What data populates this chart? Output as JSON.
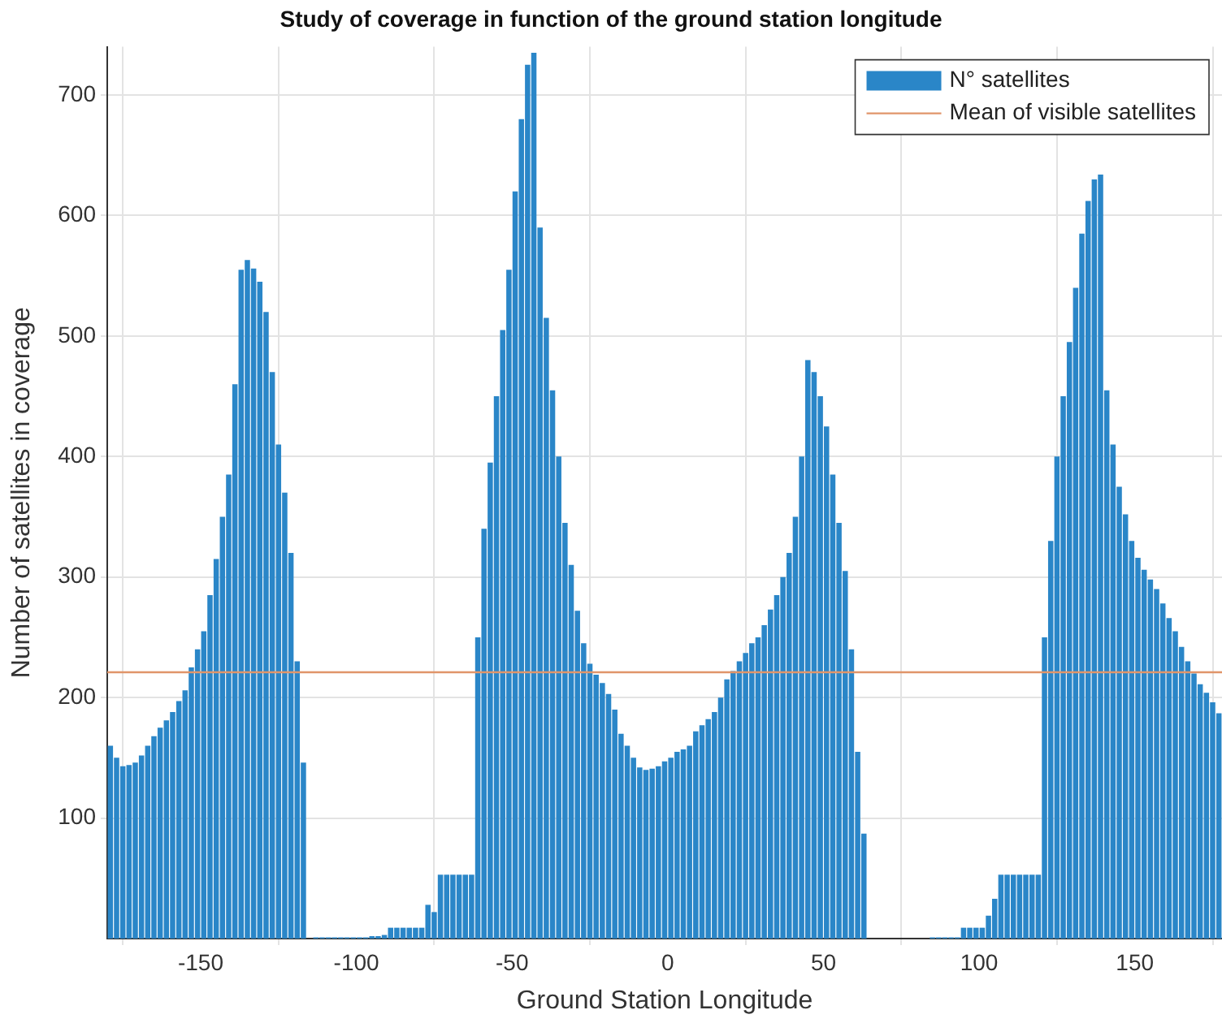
{
  "chart_data": {
    "type": "bar",
    "title": "Study of coverage in function of the ground station longitude",
    "xlabel": "Ground Station Longitude",
    "ylabel": "Number of satellites in coverage",
    "x": [
      -179,
      -177,
      -175,
      -173,
      -171,
      -169,
      -167,
      -165,
      -163,
      -161,
      -159,
      -157,
      -155,
      -153,
      -151,
      -149,
      -147,
      -145,
      -143,
      -141,
      -139,
      -137,
      -135,
      -133,
      -131,
      -129,
      -127,
      -125,
      -123,
      -121,
      -119,
      -117,
      -115,
      -113,
      -111,
      -109,
      -107,
      -105,
      -103,
      -101,
      -99,
      -97,
      -95,
      -93,
      -91,
      -89,
      -87,
      -85,
      -83,
      -81,
      -79,
      -77,
      -75,
      -73,
      -71,
      -69,
      -67,
      -65,
      -63,
      -61,
      -59,
      -57,
      -55,
      -53,
      -51,
      -49,
      -47,
      -45,
      -43,
      -41,
      -39,
      -37,
      -35,
      -33,
      -31,
      -29,
      -27,
      -25,
      -23,
      -21,
      -19,
      -17,
      -15,
      -13,
      -11,
      -9,
      -7,
      -5,
      -3,
      -1,
      1,
      3,
      5,
      7,
      9,
      11,
      13,
      15,
      17,
      19,
      21,
      23,
      25,
      27,
      29,
      31,
      33,
      35,
      37,
      39,
      41,
      43,
      45,
      47,
      49,
      51,
      53,
      55,
      57,
      59,
      61,
      63,
      65,
      67,
      69,
      71,
      73,
      75,
      77,
      79,
      81,
      83,
      85,
      87,
      89,
      91,
      93,
      95,
      97,
      99,
      101,
      103,
      105,
      107,
      109,
      111,
      113,
      115,
      117,
      119,
      121,
      123,
      125,
      127,
      129,
      131,
      133,
      135,
      137,
      139,
      141,
      143,
      145,
      147,
      149,
      151,
      153,
      155,
      157,
      159,
      161,
      163,
      165,
      167,
      169,
      171,
      173,
      175,
      177
    ],
    "series": [
      {
        "name": "N° satellites",
        "color": "#2a86c8",
        "values": [
          160,
          150,
          143,
          144,
          146,
          152,
          160,
          168,
          175,
          181,
          188,
          197,
          206,
          225,
          240,
          255,
          285,
          315,
          350,
          385,
          460,
          555,
          563,
          556,
          545,
          520,
          470,
          410,
          370,
          320,
          230,
          146,
          0,
          1,
          1,
          1,
          1,
          1,
          1,
          1,
          1,
          1,
          2,
          2,
          3,
          9,
          9,
          9,
          9,
          9,
          9,
          28,
          22,
          53,
          53,
          53,
          53,
          53,
          53,
          250,
          340,
          395,
          450,
          505,
          555,
          620,
          680,
          725,
          735,
          590,
          515,
          455,
          400,
          345,
          310,
          272,
          245,
          228,
          219,
          212,
          203,
          190,
          170,
          160,
          150,
          142,
          140,
          141,
          143,
          147,
          150,
          155,
          157,
          160,
          172,
          177,
          182,
          188,
          200,
          215,
          222,
          230,
          237,
          245,
          250,
          260,
          273,
          285,
          300,
          320,
          350,
          400,
          480,
          470,
          450,
          425,
          385,
          345,
          305,
          240,
          155,
          87,
          0,
          0,
          0,
          0,
          0,
          0,
          0,
          0,
          0,
          0,
          1,
          1,
          1,
          1,
          1,
          9,
          9,
          9,
          9,
          19,
          33,
          53,
          53,
          53,
          53,
          53,
          53,
          53,
          250,
          330,
          400,
          450,
          495,
          540,
          585,
          612,
          630,
          634,
          455,
          410,
          375,
          352,
          330,
          316,
          306,
          298,
          290,
          278,
          266,
          255,
          242,
          230,
          220,
          211,
          204,
          196,
          187
        ]
      }
    ],
    "ref_lines": [
      {
        "axis": "y",
        "value": 221,
        "label": "Mean of visible satellites",
        "color": "#e0956a"
      }
    ],
    "xlim": [
      -180,
      178
    ],
    "xticks": [
      -150,
      -100,
      -50,
      0,
      50,
      100,
      150
    ],
    "ylim": [
      0,
      740
    ],
    "yticks": [
      100,
      200,
      300,
      400,
      500,
      600,
      700
    ],
    "grid": true,
    "legend": "top right"
  }
}
